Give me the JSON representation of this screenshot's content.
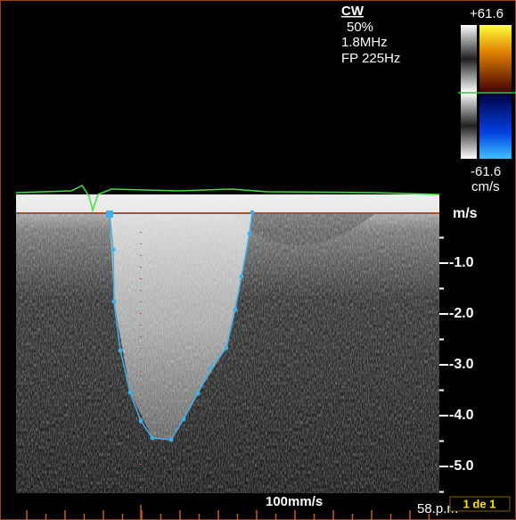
{
  "mode": {
    "name": "CW",
    "power": "50%",
    "frequency": "1.8MHz",
    "filter": "FP 225Hz"
  },
  "color_bar": {
    "top": "+61.6",
    "bottom": "-61.6",
    "unit": "cm/s"
  },
  "velocity_scale": {
    "unit": "m/s",
    "ticks": [
      "-1.0",
      "-2.0",
      "-3.0",
      "-4.0",
      "-5.0"
    ]
  },
  "footer": {
    "sweep_speed": "100mm/s",
    "heart_rate": "58.p.m",
    "page": "1 de 1"
  }
}
